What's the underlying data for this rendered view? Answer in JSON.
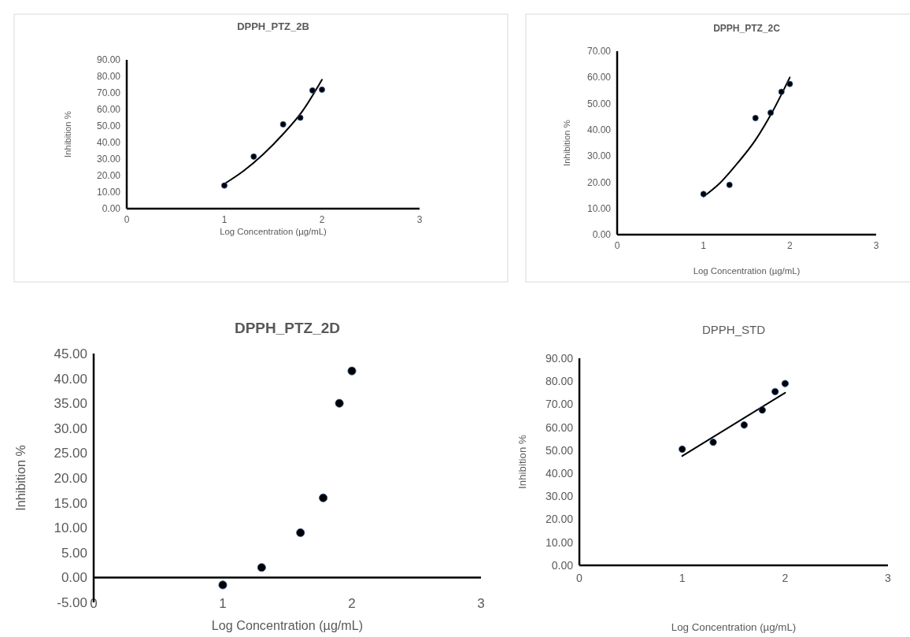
{
  "chart_data": [
    {
      "type": "scatter",
      "title": "DPPH_PTZ_2B",
      "xlabel": "Log Concentration (µg/mL)",
      "ylabel": "Inhibition %",
      "xlim": [
        0,
        3
      ],
      "xticks": [
        0,
        1,
        2,
        3
      ],
      "ylim": [
        0,
        90
      ],
      "yticks": [
        {
          "value": 0,
          "label": "0.00"
        },
        {
          "value": 10,
          "label": "10.00"
        },
        {
          "value": 20,
          "label": "20.00"
        },
        {
          "value": 30,
          "label": "30.00"
        },
        {
          "value": 40,
          "label": "40.00"
        },
        {
          "value": 50,
          "label": "50.00"
        },
        {
          "value": 60,
          "label": "60.00"
        },
        {
          "value": 70,
          "label": "70.00"
        },
        {
          "value": 80,
          "label": "80.00"
        },
        {
          "value": 90,
          "label": "90.00"
        }
      ],
      "grid": false,
      "series": [
        {
          "color": "#000000",
          "marker": "circle",
          "x": [
            1,
            1.301,
            1.602,
            1.778,
            1.903,
            2
          ],
          "values": [
            14,
            31.5,
            51,
            55,
            71.5,
            72
          ]
        },
        {
          "type": "line",
          "marker": "none",
          "color": "#000000",
          "x": [
            1,
            1.2,
            1.4,
            1.6,
            1.8,
            2
          ],
          "values": [
            15,
            23,
            33,
            45,
            59,
            78
          ]
        }
      ]
    },
    {
      "type": "scatter",
      "title": "DPPH_PTZ_2C",
      "xlabel": "Log Concentration (µg/mL)",
      "ylabel": "Inhibition %",
      "xlim": [
        0,
        3
      ],
      "xticks": [
        0,
        1,
        2,
        3
      ],
      "ylim": [
        0,
        70
      ],
      "yticks": [
        {
          "value": 0,
          "label": "0.00"
        },
        {
          "value": 10,
          "label": "10.00"
        },
        {
          "value": 20,
          "label": "20.00"
        },
        {
          "value": 30,
          "label": "30.00"
        },
        {
          "value": 40,
          "label": "40.00"
        },
        {
          "value": 50,
          "label": "50.00"
        },
        {
          "value": 60,
          "label": "60.00"
        },
        {
          "value": 70,
          "label": "70.00"
        }
      ],
      "grid": false,
      "series": [
        {
          "color": "#000000",
          "marker": "circle",
          "x": [
            1,
            1.301,
            1.602,
            1.778,
            1.903,
            2
          ],
          "values": [
            15.5,
            19,
            44.5,
            46.5,
            54.5,
            57.5
          ]
        },
        {
          "type": "line",
          "marker": "none",
          "color": "#000000",
          "x": [
            1,
            1.2,
            1.4,
            1.6,
            1.8,
            2
          ],
          "values": [
            14.5,
            20,
            27.5,
            36,
            47,
            60
          ]
        }
      ]
    },
    {
      "type": "scatter",
      "title": "DPPH_PTZ_2D",
      "xlabel": "Log Concentration (µg/mL)",
      "ylabel": "Inhibition %",
      "xlim": [
        0,
        3
      ],
      "xticks": [
        0,
        1,
        2,
        3
      ],
      "ylim": [
        -5,
        45
      ],
      "yticks": [
        {
          "value": -5,
          "label": "-5.00"
        },
        {
          "value": 0,
          "label": "0.00"
        },
        {
          "value": 5,
          "label": "5.00"
        },
        {
          "value": 10,
          "label": "10.00"
        },
        {
          "value": 15,
          "label": "15.00"
        },
        {
          "value": 20,
          "label": "20.00"
        },
        {
          "value": 25,
          "label": "25.00"
        },
        {
          "value": 30,
          "label": "30.00"
        },
        {
          "value": 35,
          "label": "35.00"
        },
        {
          "value": 40,
          "label": "40.00"
        },
        {
          "value": 45,
          "label": "45.00"
        }
      ],
      "grid": false,
      "series": [
        {
          "color": "#000000",
          "marker": "circle",
          "x": [
            1,
            1.301,
            1.602,
            1.778,
            1.903,
            2
          ],
          "values": [
            -1.5,
            2,
            9,
            16,
            35,
            41.5
          ]
        }
      ]
    },
    {
      "type": "scatter",
      "title": "DPPH_STD",
      "xlabel": "Log Concentration (µg/mL)",
      "ylabel": "Inhibition %",
      "xlim": [
        0,
        3
      ],
      "xticks": [
        0,
        1,
        2,
        3
      ],
      "ylim": [
        0,
        90
      ],
      "yticks": [
        {
          "value": 0,
          "label": "0.00"
        },
        {
          "value": 10,
          "label": "10.00"
        },
        {
          "value": 20,
          "label": "20.00"
        },
        {
          "value": 30,
          "label": "30.00"
        },
        {
          "value": 40,
          "label": "40.00"
        },
        {
          "value": 50,
          "label": "50.00"
        },
        {
          "value": 60,
          "label": "60.00"
        },
        {
          "value": 70,
          "label": "70.00"
        },
        {
          "value": 80,
          "label": "80.00"
        },
        {
          "value": 90,
          "label": "90.00"
        }
      ],
      "grid": false,
      "series": [
        {
          "color": "#000000",
          "marker": "circle",
          "x": [
            1,
            1.301,
            1.602,
            1.778,
            1.903,
            2
          ],
          "values": [
            50.5,
            53.5,
            61,
            67.5,
            75.5,
            79
          ]
        },
        {
          "type": "line",
          "marker": "none",
          "color": "#000000",
          "x": [
            1,
            2
          ],
          "values": [
            47.5,
            75
          ]
        }
      ]
    }
  ]
}
